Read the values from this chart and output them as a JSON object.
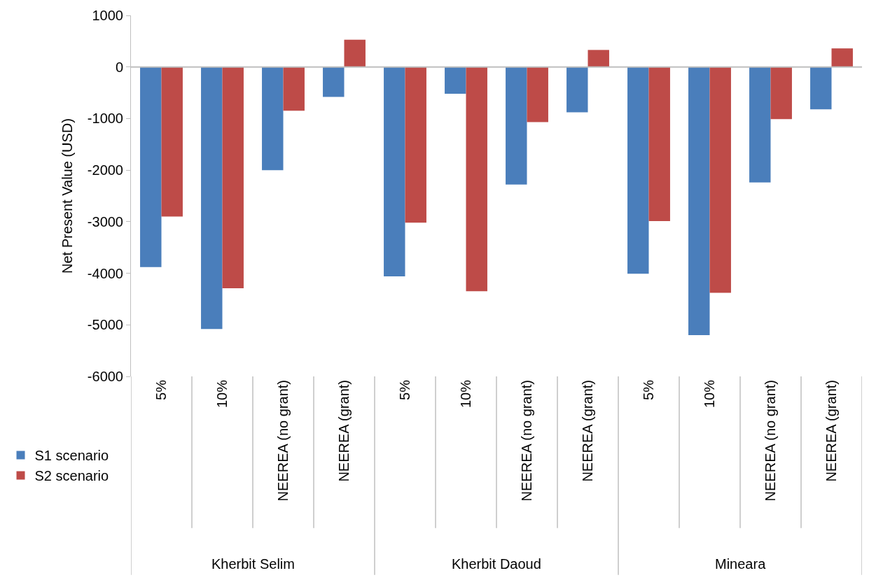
{
  "chart_data": {
    "type": "bar",
    "ylabel": "Net Present Value (USD)",
    "categories": [
      "5%",
      "10%",
      "NEEREA (no grant)",
      "NEEREA (grant)",
      "5%",
      "10%",
      "NEEREA (no grant)",
      "NEEREA (grant)",
      "5%",
      "10%",
      "NEEREA (no grant)",
      "NEEREA (grant)"
    ],
    "series": [
      {
        "name": "S1 scenario",
        "color": "#4a7ebb",
        "values": [
          -3880,
          -5080,
          -2000,
          -580,
          -4060,
          -520,
          -2280,
          -880,
          -4010,
          -5200,
          -2240,
          -820
        ]
      },
      {
        "name": "S2 scenario",
        "color": "#be4b48",
        "values": [
          -2900,
          -4290,
          -850,
          530,
          -3020,
          -4350,
          -1070,
          330,
          -2990,
          -4380,
          -1010,
          360
        ]
      }
    ],
    "annotations": [
      "Kherbit Selim",
      "Kherbit Daoud",
      "Mineara"
    ],
    "ylim": [
      -6000,
      1000
    ],
    "yticks": [
      -6000,
      -5000,
      -4000,
      -3000,
      -2000,
      -1000,
      0,
      1000
    ],
    "ref_lines": [
      {
        "axis": "y",
        "value": 0,
        "color": "#bfbfbf"
      }
    ],
    "legend": "left"
  }
}
